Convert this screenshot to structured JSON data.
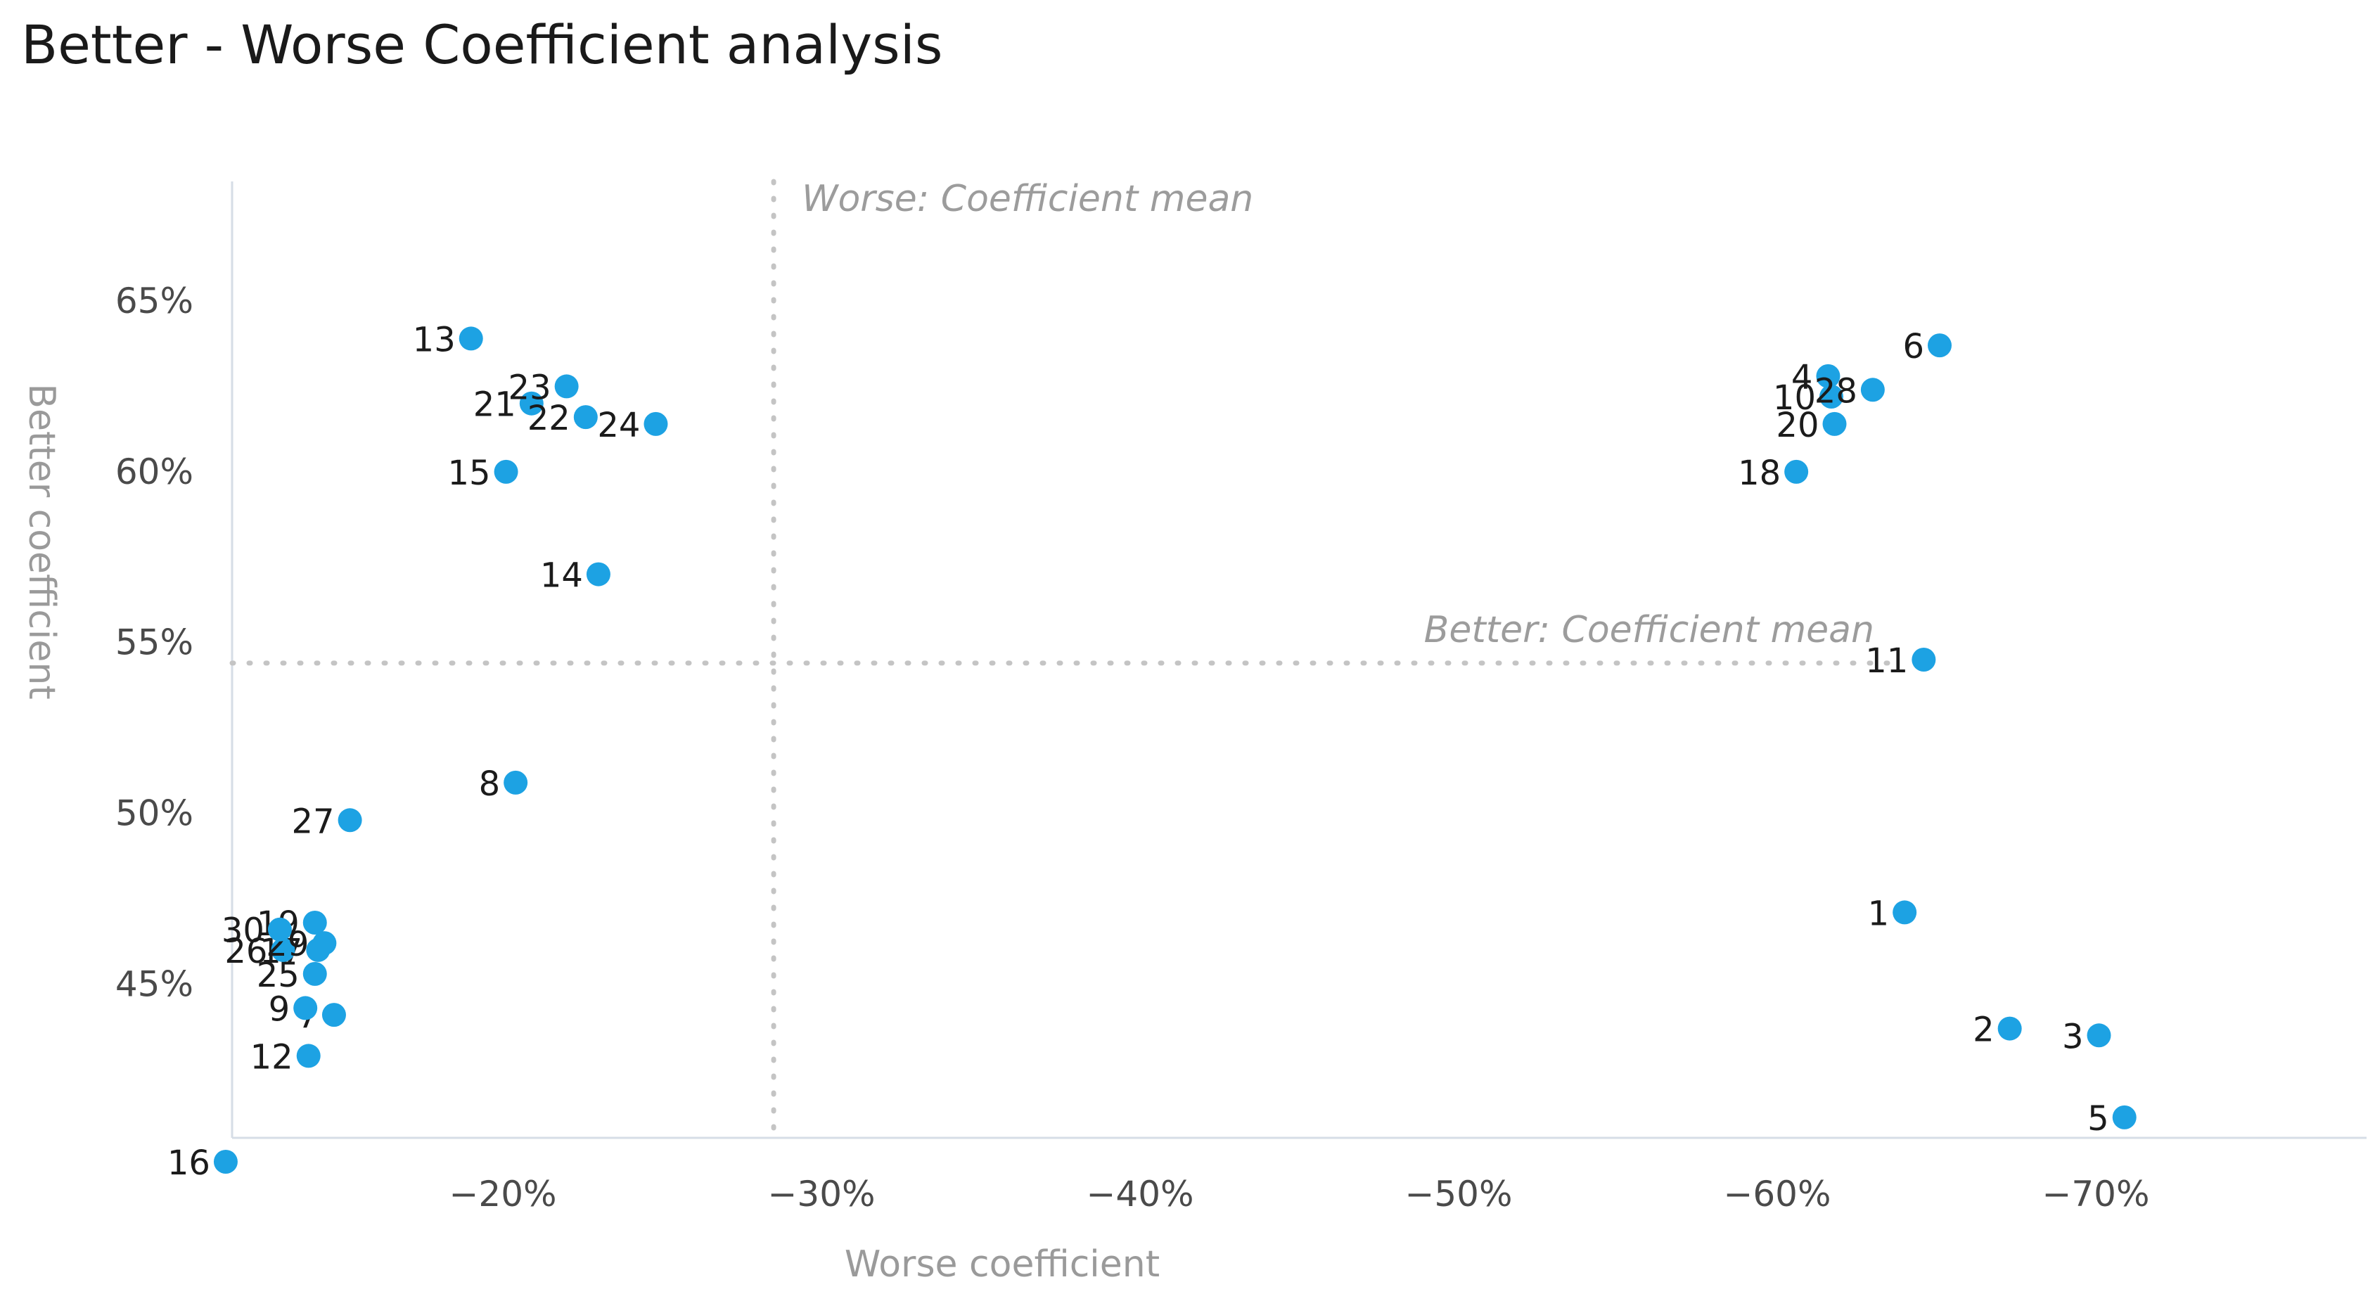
{
  "chart_data": {
    "type": "scatter",
    "title": "Better - Worse Coefficient analysis",
    "xlabel": "Worse coefficient",
    "ylabel": "Better coefficient",
    "xlim": [
      -11.5,
      -78.5
    ],
    "ylim": [
      40.5,
      68.5
    ],
    "x_ticks": [
      {
        "value": -20,
        "label": "−20%"
      },
      {
        "value": -30,
        "label": "−30%"
      },
      {
        "value": -40,
        "label": "−40%"
      },
      {
        "value": -50,
        "label": "−50%"
      },
      {
        "value": -60,
        "label": "−60%"
      },
      {
        "value": -70,
        "label": "−70%"
      }
    ],
    "y_ticks": [
      {
        "value": 45,
        "label": "45%"
      },
      {
        "value": 50,
        "label": "50%"
      },
      {
        "value": 55,
        "label": "55%"
      },
      {
        "value": 60,
        "label": "60%"
      },
      {
        "value": 65,
        "label": "65%"
      }
    ],
    "worse_mean": {
      "value": -28.5,
      "label": "Worse: Coefficient mean"
    },
    "better_mean": {
      "value": 54.4,
      "label": "Better:  Coefficient mean"
    },
    "grid": false,
    "points": [
      {
        "label": "1",
        "x": -64.0,
        "y": 47.1
      },
      {
        "label": "2",
        "x": -67.3,
        "y": 43.7
      },
      {
        "label": "3",
        "x": -70.1,
        "y": 43.5
      },
      {
        "label": "4",
        "x": -61.6,
        "y": 62.8
      },
      {
        "label": "5",
        "x": -70.9,
        "y": 41.1
      },
      {
        "label": "6",
        "x": -65.1,
        "y": 63.7
      },
      {
        "label": "7",
        "x": -14.7,
        "y": 44.1
      },
      {
        "label": "8",
        "x": -20.4,
        "y": 50.9
      },
      {
        "label": "9",
        "x": -13.8,
        "y": 44.3
      },
      {
        "label": "10",
        "x": -61.7,
        "y": 62.2
      },
      {
        "label": "11",
        "x": -64.6,
        "y": 54.5
      },
      {
        "label": "12",
        "x": -13.9,
        "y": 42.9
      },
      {
        "label": "13",
        "x": -19.0,
        "y": 63.9
      },
      {
        "label": "14",
        "x": -23.0,
        "y": 57.0
      },
      {
        "label": "15",
        "x": -20.1,
        "y": 60.0
      },
      {
        "label": "16",
        "x": -11.3,
        "y": 39.8
      },
      {
        "label": "17",
        "x": -14.2,
        "y": 46.0
      },
      {
        "label": "18",
        "x": -60.6,
        "y": 60.0
      },
      {
        "label": "19",
        "x": -14.1,
        "y": 46.8
      },
      {
        "label": "20",
        "x": -61.8,
        "y": 61.4
      },
      {
        "label": "21",
        "x": -20.9,
        "y": 62.0
      },
      {
        "label": "22",
        "x": -22.6,
        "y": 61.6
      },
      {
        "label": "23",
        "x": -22.0,
        "y": 62.5
      },
      {
        "label": "24",
        "x": -24.8,
        "y": 61.4
      },
      {
        "label": "25",
        "x": -14.1,
        "y": 45.3
      },
      {
        "label": "26",
        "x": -13.1,
        "y": 46.0
      },
      {
        "label": "27",
        "x": -15.2,
        "y": 49.8
      },
      {
        "label": "28",
        "x": -63.0,
        "y": 62.4
      },
      {
        "label": "29",
        "x": -14.4,
        "y": 46.2
      },
      {
        "label": "30",
        "x": -13.0,
        "y": 46.6
      }
    ]
  }
}
